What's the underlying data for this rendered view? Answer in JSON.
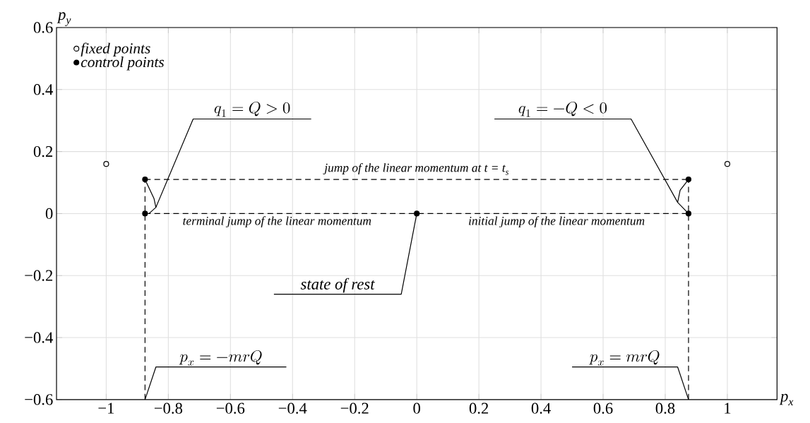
{
  "chart_data": {
    "type": "scatter",
    "xlabel": "p$_{x}$",
    "ylabel": "p$_{y}$",
    "xlim": [
      -1.16,
      1.16
    ],
    "ylim": [
      -0.6,
      0.6
    ],
    "xticks": [
      {
        "value": -1,
        "label": "−1"
      },
      {
        "value": -0.8,
        "label": "−0.8"
      },
      {
        "value": -0.6,
        "label": "−0.6"
      },
      {
        "value": -0.4,
        "label": "−0.4"
      },
      {
        "value": -0.2,
        "label": "−0.2"
      },
      0,
      0.2,
      0.4,
      0.6,
      0.8,
      1
    ],
    "yticks": [
      {
        "value": -0.6,
        "label": "−0.6"
      },
      {
        "value": -0.4,
        "label": "−0.4"
      },
      {
        "value": -0.2,
        "label": "−0.2"
      },
      0,
      0.2,
      0.4,
      0.6
    ],
    "grid": true,
    "legend": "top left",
    "series": [
      {
        "name": "fixed points",
        "type": "scatter",
        "marker": "circle",
        "color": "#ffffff",
        "x": [
          -1.0,
          1.0
        ],
        "values": [
          0.16,
          0.16
        ]
      },
      {
        "name": "control points",
        "type": "scatter",
        "marker": "circle",
        "color": "#000000",
        "x": [
          -0.875,
          -0.875,
          0,
          0.875,
          0.875
        ],
        "values": [
          0.11,
          0,
          0,
          0,
          0.11
        ]
      },
      {
        "type": "line",
        "line_style": "dashed",
        "color": "#000000",
        "x": [
          -0.875,
          -0.875
        ],
        "values": [
          -0.6,
          0.11
        ]
      },
      {
        "type": "line",
        "line_style": "dashed",
        "color": "#000000",
        "x": [
          0.875,
          0.875
        ],
        "values": [
          -0.6,
          0.11
        ]
      },
      {
        "type": "line",
        "line_style": "dashed",
        "color": "#000000",
        "x": [
          -0.875,
          0.875
        ],
        "values": [
          0,
          0
        ]
      },
      {
        "type": "line",
        "line_style": "dashed",
        "color": "#000000",
        "x": [
          -0.875,
          0.875
        ],
        "values": [
          0.11,
          0.11
        ]
      },
      {
        "type": "line",
        "line_style": "solid",
        "color": "#000000",
        "x": [
          -0.875,
          -0.846,
          -0.84,
          -0.862
        ],
        "values": [
          0.11,
          0.048,
          0.02,
          0
        ]
      },
      {
        "type": "line",
        "line_style": "solid",
        "color": "#000000",
        "x": [
          0.875,
          0.84,
          0.848,
          0.875
        ],
        "values": [
          0,
          0.036,
          0.075,
          0.11
        ]
      }
    ],
    "annotations": [
      {
        "text": "q_1 = Q > 0",
        "x": -0.84,
        "y": 0.02
      },
      {
        "text": "q_1 = -Q < 0",
        "x": 0.84,
        "y": 0.036
      },
      "jump of the linear momentum at t = t$_{s}$",
      "terminal jump of the linear momentum",
      "initial jump of the linear momentum",
      {
        "text": "state of rest",
        "x": 0,
        "y": 0
      },
      {
        "text": "p_x = -mrQ",
        "x": -0.875,
        "y": -0.6
      },
      {
        "text": "p_x = mrQ",
        "x": 0.875,
        "y": -0.6
      }
    ]
  }
}
